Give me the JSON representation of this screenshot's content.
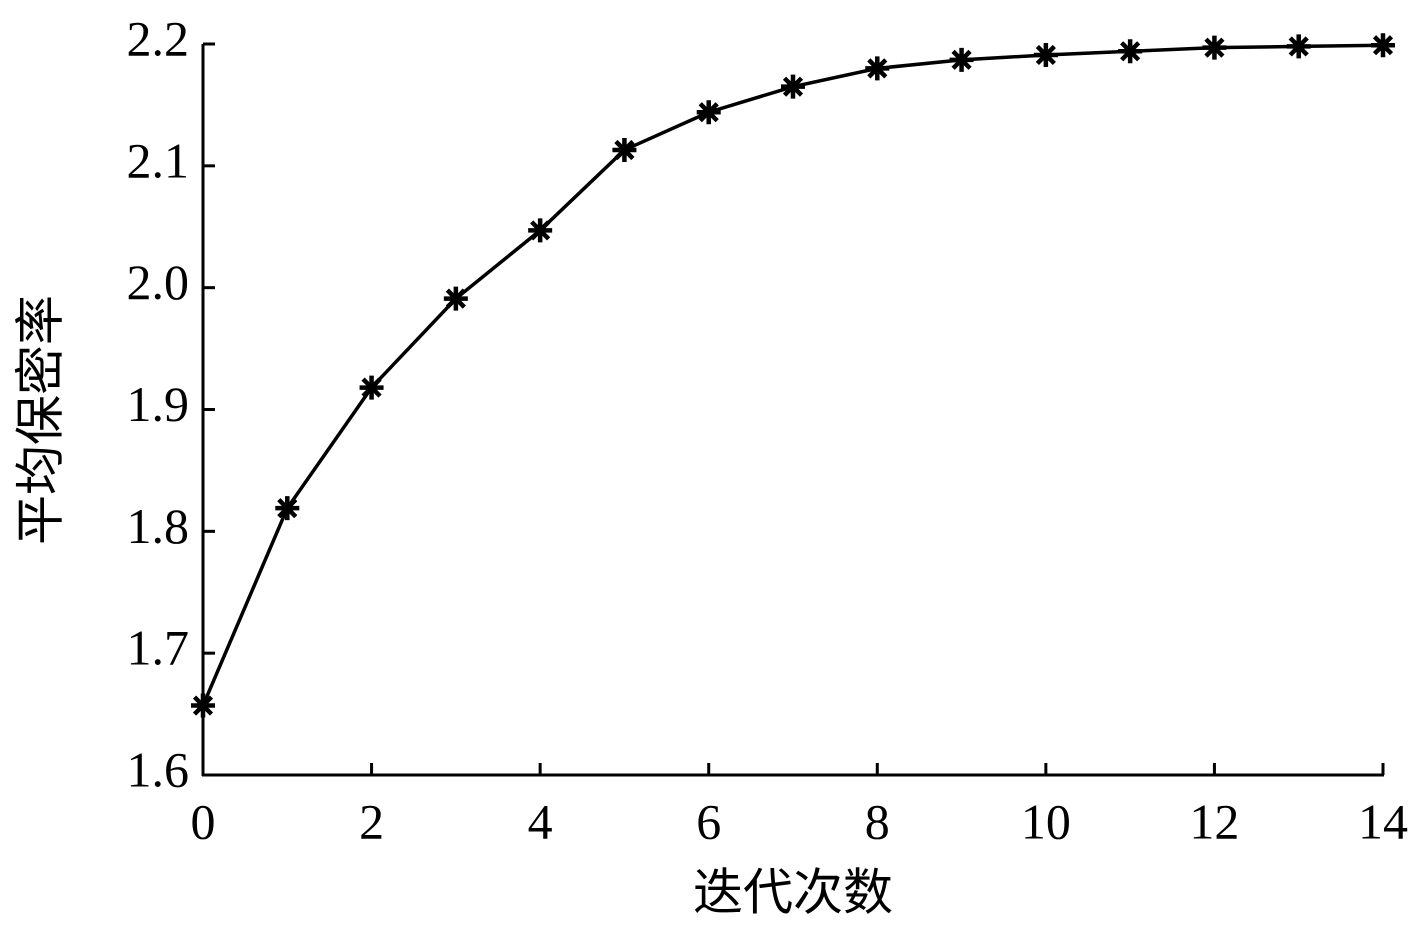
{
  "chart_data": {
    "type": "line",
    "x_label": "迭代次数",
    "y_label": "平均保密率",
    "x": [
      0,
      1,
      2,
      3,
      4,
      5,
      6,
      7,
      8,
      9,
      10,
      11,
      12,
      13,
      14
    ],
    "values": [
      1.657,
      1.819,
      1.918,
      1.991,
      2.047,
      2.113,
      2.144,
      2.165,
      2.18,
      2.187,
      2.191,
      2.194,
      2.197,
      2.198,
      2.199
    ],
    "color": "#000000",
    "marker": "asterisk",
    "xlim": [
      0,
      14
    ],
    "xticks": [
      0,
      2,
      4,
      6,
      8,
      10,
      12,
      14
    ],
    "ylim": [
      1.6,
      2.2
    ],
    "yticks": [
      1.6,
      1.7,
      1.8,
      1.9,
      {
        "value": 2,
        "label": "2.0"
      },
      2.1,
      2.2
    ]
  }
}
